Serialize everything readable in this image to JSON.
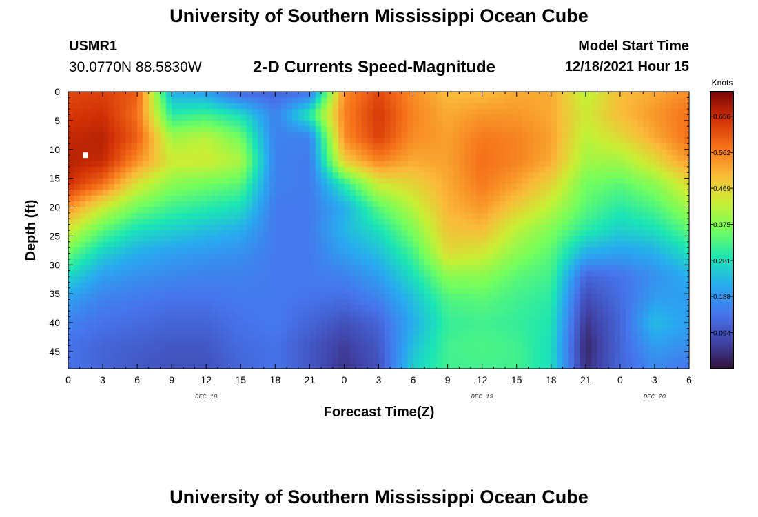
{
  "header": {
    "title": "University of Southern Mississippi Ocean Cube",
    "station_id": "USMR1",
    "station_coords": "30.0770N  88.5830W",
    "subtitle": "2-D Currents Speed-Magnitude",
    "model_label": "Model Start Time",
    "model_time": "12/18/2021 Hour 15"
  },
  "footer": {
    "title": "University of Southern Mississippi Ocean Cube"
  },
  "chart_data": {
    "type": "heatmap",
    "title": "2-D Currents Speed-Magnitude",
    "xlabel": "Forecast Time(Z)",
    "ylabel": "Depth (ft)",
    "x_unit": "hours since Dec 18 00Z",
    "xlim": [
      0,
      54
    ],
    "ylim": [
      48,
      0
    ],
    "x_ticks": [
      {
        "hour": 0,
        "label": "0"
      },
      {
        "hour": 3,
        "label": "3"
      },
      {
        "hour": 6,
        "label": "6"
      },
      {
        "hour": 9,
        "label": "9"
      },
      {
        "hour": 12,
        "label": "12"
      },
      {
        "hour": 15,
        "label": "15"
      },
      {
        "hour": 18,
        "label": "18"
      },
      {
        "hour": 21,
        "label": "21"
      },
      {
        "hour": 24,
        "label": "0"
      },
      {
        "hour": 27,
        "label": "3"
      },
      {
        "hour": 30,
        "label": "6"
      },
      {
        "hour": 33,
        "label": "9"
      },
      {
        "hour": 36,
        "label": "12"
      },
      {
        "hour": 39,
        "label": "15"
      },
      {
        "hour": 42,
        "label": "18"
      },
      {
        "hour": 45,
        "label": "21"
      },
      {
        "hour": 48,
        "label": "0"
      },
      {
        "hour": 51,
        "label": "3"
      },
      {
        "hour": 54,
        "label": "6"
      }
    ],
    "y_ticks": [
      {
        "depth": 0,
        "label": "0"
      },
      {
        "depth": 5,
        "label": "5"
      },
      {
        "depth": 10,
        "label": "10"
      },
      {
        "depth": 15,
        "label": "15"
      },
      {
        "depth": 20,
        "label": "20"
      },
      {
        "depth": 25,
        "label": "25"
      },
      {
        "depth": 30,
        "label": "30"
      },
      {
        "depth": 35,
        "label": "35"
      },
      {
        "depth": 40,
        "label": "40"
      },
      {
        "depth": 45,
        "label": "45"
      }
    ],
    "date_labels": [
      {
        "hour": 12,
        "label": "DEC 18"
      },
      {
        "hour": 36,
        "label": "DEC 19"
      },
      {
        "hour": 51,
        "label": "DEC 20"
      }
    ],
    "colorbar": {
      "units": "Knots",
      "min": 0.0,
      "max": 0.72,
      "tick_values": [
        0.094,
        0.188,
        0.281,
        0.375,
        0.469,
        0.562,
        0.656
      ],
      "tick_labels": [
        "0.094",
        "0.188",
        "0.281",
        "0.375",
        "0.469",
        "0.562",
        "0.656"
      ]
    },
    "marker": {
      "hour": 1.5,
      "depth": 11
    },
    "grid_hours": [
      0,
      3,
      6,
      9,
      12,
      15,
      18,
      21,
      24,
      27,
      30,
      33,
      36,
      39,
      42,
      45,
      48,
      51,
      54
    ],
    "grid_depths": [
      0,
      4,
      8,
      12,
      16,
      20,
      24,
      28,
      32,
      36,
      40,
      44,
      48
    ],
    "speed_knots": [
      [
        0.62,
        0.63,
        0.6,
        0.22,
        0.2,
        0.12,
        0.12,
        0.14,
        0.55,
        0.62,
        0.55,
        0.5,
        0.5,
        0.52,
        0.52,
        0.42,
        0.5,
        0.52,
        0.55
      ],
      [
        0.64,
        0.65,
        0.58,
        0.3,
        0.32,
        0.28,
        0.16,
        0.3,
        0.56,
        0.64,
        0.56,
        0.52,
        0.54,
        0.54,
        0.52,
        0.44,
        0.5,
        0.54,
        0.58
      ],
      [
        0.66,
        0.67,
        0.6,
        0.4,
        0.42,
        0.36,
        0.16,
        0.16,
        0.55,
        0.63,
        0.55,
        0.53,
        0.57,
        0.56,
        0.53,
        0.42,
        0.46,
        0.52,
        0.58
      ],
      [
        0.67,
        0.66,
        0.55,
        0.44,
        0.44,
        0.41,
        0.16,
        0.15,
        0.48,
        0.56,
        0.52,
        0.53,
        0.58,
        0.56,
        0.52,
        0.4,
        0.4,
        0.46,
        0.54
      ],
      [
        0.65,
        0.58,
        0.45,
        0.38,
        0.36,
        0.34,
        0.16,
        0.15,
        0.3,
        0.44,
        0.47,
        0.52,
        0.57,
        0.53,
        0.47,
        0.36,
        0.34,
        0.38,
        0.46
      ],
      [
        0.55,
        0.44,
        0.36,
        0.32,
        0.3,
        0.28,
        0.15,
        0.15,
        0.22,
        0.34,
        0.42,
        0.51,
        0.54,
        0.48,
        0.42,
        0.34,
        0.3,
        0.33,
        0.4
      ],
      [
        0.44,
        0.34,
        0.28,
        0.26,
        0.24,
        0.22,
        0.15,
        0.15,
        0.23,
        0.28,
        0.37,
        0.49,
        0.5,
        0.42,
        0.37,
        0.3,
        0.26,
        0.28,
        0.34
      ],
      [
        0.35,
        0.26,
        0.22,
        0.2,
        0.19,
        0.18,
        0.15,
        0.15,
        0.2,
        0.24,
        0.32,
        0.46,
        0.44,
        0.38,
        0.34,
        0.22,
        0.2,
        0.22,
        0.28
      ],
      [
        0.27,
        0.2,
        0.18,
        0.17,
        0.16,
        0.16,
        0.15,
        0.15,
        0.16,
        0.2,
        0.28,
        0.38,
        0.38,
        0.34,
        0.32,
        0.12,
        0.14,
        0.18,
        0.22
      ],
      [
        0.2,
        0.16,
        0.15,
        0.14,
        0.14,
        0.15,
        0.15,
        0.14,
        0.13,
        0.16,
        0.24,
        0.33,
        0.34,
        0.32,
        0.3,
        0.08,
        0.13,
        0.2,
        0.2
      ],
      [
        0.16,
        0.14,
        0.13,
        0.12,
        0.12,
        0.14,
        0.15,
        0.12,
        0.09,
        0.12,
        0.22,
        0.31,
        0.32,
        0.31,
        0.29,
        0.05,
        0.12,
        0.24,
        0.2
      ],
      [
        0.14,
        0.12,
        0.11,
        0.1,
        0.1,
        0.13,
        0.14,
        0.1,
        0.06,
        0.1,
        0.24,
        0.32,
        0.33,
        0.32,
        0.28,
        0.03,
        0.12,
        0.2,
        0.18
      ],
      [
        0.14,
        0.12,
        0.1,
        0.09,
        0.09,
        0.12,
        0.14,
        0.1,
        0.05,
        0.09,
        0.26,
        0.32,
        0.32,
        0.32,
        0.28,
        0.04,
        0.12,
        0.17,
        0.14
      ]
    ]
  }
}
